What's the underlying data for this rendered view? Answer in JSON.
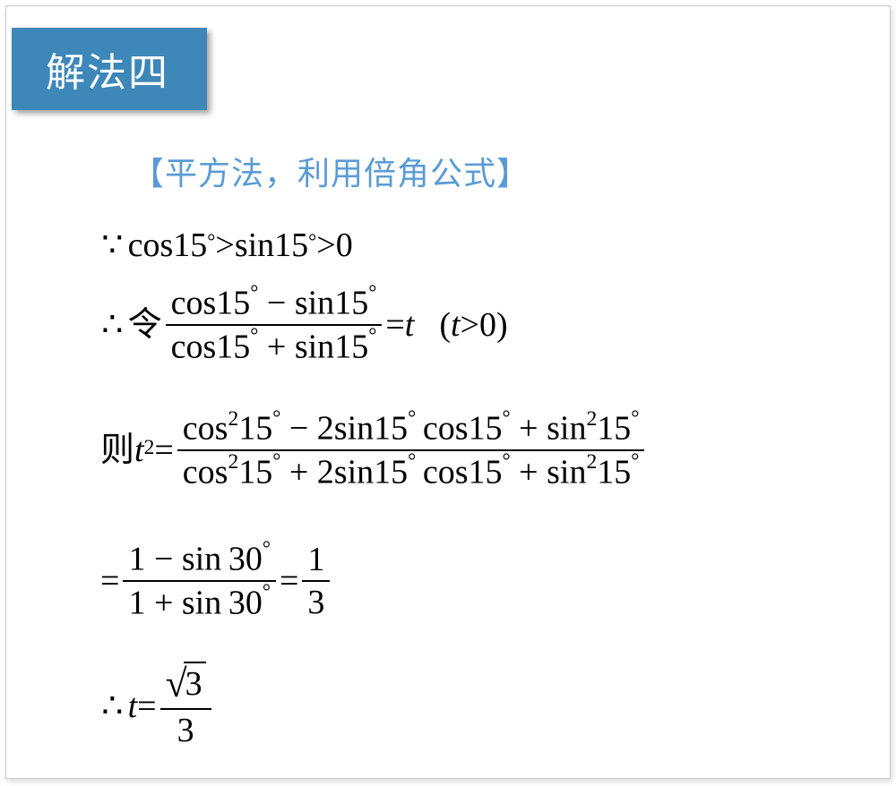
{
  "colors": {
    "badge_bg": "#3d87b9",
    "badge_text": "#ffffff",
    "subtitle": "#5a9bd5",
    "card_border": "#c9c9c9",
    "body_text": "#000000",
    "background": "#ffffff"
  },
  "badge": {
    "text": "解法四",
    "fontsize": 44
  },
  "subtitle": {
    "text": "【平方法，利用倍角公式】",
    "fontsize": 36
  },
  "math": {
    "fontsize": 38,
    "line1": {
      "sym": "because",
      "expr_parts": {
        "cos": "cos",
        "sin": "sin",
        "ang": "15",
        "deg": "°",
        "gt1": " > ",
        "gt2": " > ",
        "zero": "0"
      }
    },
    "line2": {
      "sym": "therefore",
      "let": "令",
      "num_parts": {
        "cos": "cos",
        "ang1": "15",
        "minus": " − ",
        "sin": "sin",
        "ang2": "15"
      },
      "den_parts": {
        "cos": "cos",
        "ang1": "15",
        "plus": " + ",
        "sin": "sin",
        "ang2": "15"
      },
      "eq": " = ",
      "t": "t",
      "paren_open": "(",
      "tg": "t",
      "gt": " > ",
      "zero": "0",
      "paren_close": ")"
    },
    "line3": {
      "then": "则",
      "t": "t",
      "sq": "2",
      "eq": " = ",
      "num_parts": {
        "cos": "cos",
        "sq": "2",
        "ang": "15",
        "minus": " − ",
        "two": "2",
        "sin": "sin",
        "plus": " + "
      },
      "den_parts": {
        "cos": "cos",
        "sq": "2",
        "ang": "15",
        "plus": " + ",
        "two": "2",
        "sin": "sin"
      }
    },
    "line4": {
      "eq1": "= ",
      "num1_parts": {
        "one": "1",
        "minus": " − ",
        "sin": "sin",
        "ang": "30"
      },
      "den1_parts": {
        "one": "1",
        "plus": " + ",
        "sin": "sin",
        "ang": "30"
      },
      "eq2": " = ",
      "num2": "1",
      "den2": "3"
    },
    "line5": {
      "sym": "therefore",
      "t": "t",
      "eq": " = ",
      "num_parts": {
        "root": "3"
      },
      "den": "3"
    }
  }
}
